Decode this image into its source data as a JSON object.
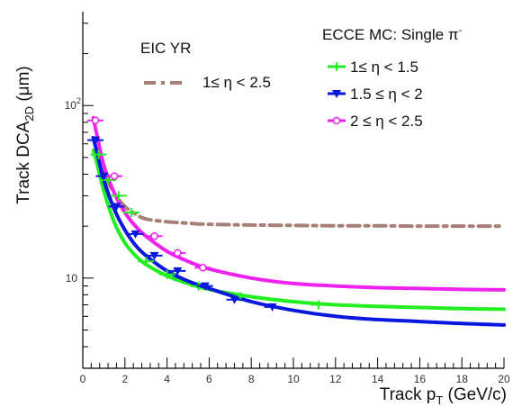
{
  "chart_data": {
    "type": "line",
    "xlabel": "Track p",
    "xlabel_sub": "T",
    "xlabel_unit": "(GeV/c)",
    "ylabel": "Track DCA",
    "ylabel_sub": "2D",
    "ylabel_unit": "(μm)",
    "xlim": [
      0,
      20
    ],
    "ylim": [
      3,
      350
    ],
    "yscale": "log",
    "x_ticks": [
      "0",
      "2",
      "4",
      "6",
      "8",
      "10",
      "12",
      "14",
      "16",
      "18",
      "20"
    ],
    "y_ticks": [
      {
        "value": 10,
        "base": "10",
        "exp": ""
      },
      {
        "value": 100,
        "base": "10",
        "exp": "2"
      }
    ],
    "legend_groups": {
      "left_title": "EIC YR",
      "right_title": "ECCE MC: Single π",
      "right_title_sup": "-"
    },
    "series": [
      {
        "name": "1≤ η < 2.5",
        "group": "left",
        "color": "#a87f77",
        "style": "dashdot",
        "marker": "none",
        "x": [
          0.6,
          1.0,
          1.5,
          2.0,
          2.5,
          3.0,
          4.0,
          5.0,
          6.0,
          8.0,
          10.0,
          12.0,
          14.0,
          16.0,
          18.0,
          20.0
        ],
        "y": [
          52,
          40,
          31,
          26,
          23.5,
          22,
          21.2,
          20.8,
          20.5,
          20.3,
          20.2,
          20.1,
          20.1,
          20.0,
          20.0,
          20.0
        ]
      },
      {
        "name": "1≤ η < 1.5",
        "group": "right",
        "color": "#22ee22",
        "style": "solid",
        "marker": "plus",
        "x": [
          0.5,
          0.7,
          1.0,
          1.5,
          2.0,
          2.5,
          3.0,
          4.0,
          5.0,
          6.0,
          8.0,
          10.0,
          12.0,
          14.0,
          16.0,
          18.0,
          20.0
        ],
        "y": [
          55,
          45,
          32,
          21,
          16,
          13.5,
          12,
          10.3,
          9.3,
          8.6,
          7.8,
          7.3,
          7.0,
          6.85,
          6.75,
          6.65,
          6.6
        ],
        "points_x": [
          0.75,
          1.2,
          1.7,
          2.3,
          3.0,
          4.0,
          5.5,
          7.5,
          11.2
        ],
        "points_y": [
          52,
          37,
          30,
          24,
          12.5,
          10.5,
          9.0,
          7.8,
          7.0
        ]
      },
      {
        "name": "1.5 ≤ η < 2",
        "group": "right",
        "color": "#0a18dd",
        "style": "solid",
        "marker": "triangle-down",
        "x": [
          0.5,
          0.7,
          1.0,
          1.5,
          2.0,
          2.5,
          3.0,
          4.0,
          5.0,
          6.0,
          8.0,
          10.0,
          12.0,
          14.0,
          16.0,
          18.0,
          20.0
        ],
        "y": [
          65,
          52,
          37,
          25,
          19,
          15.5,
          13.5,
          11,
          9.6,
          8.7,
          7.3,
          6.5,
          6.0,
          5.75,
          5.6,
          5.45,
          5.35
        ],
        "points_x": [
          0.6,
          1.0,
          1.6,
          2.5,
          3.4,
          4.5,
          5.8,
          7.2,
          9.0
        ],
        "points_y": [
          63,
          39,
          26,
          18,
          13.5,
          11,
          9.0,
          7.5,
          6.8
        ]
      },
      {
        "name": "2 ≤ η < 2.5",
        "group": "right",
        "color": "#ee22ee",
        "style": "solid",
        "marker": "circle-open",
        "x": [
          0.5,
          0.7,
          1.0,
          1.5,
          2.0,
          2.5,
          3.0,
          4.0,
          5.0,
          6.0,
          8.0,
          10.0,
          12.0,
          14.0,
          16.0,
          18.0,
          20.0
        ],
        "y": [
          85,
          65,
          45,
          31,
          24,
          20,
          17.5,
          14.3,
          12.5,
          11.3,
          10,
          9.3,
          9.0,
          8.8,
          8.7,
          8.6,
          8.55
        ],
        "points_x": [
          0.6,
          1.5,
          3.4,
          4.5,
          5.7
        ],
        "points_y": [
          82,
          39,
          17.5,
          14,
          11.5
        ]
      }
    ]
  }
}
